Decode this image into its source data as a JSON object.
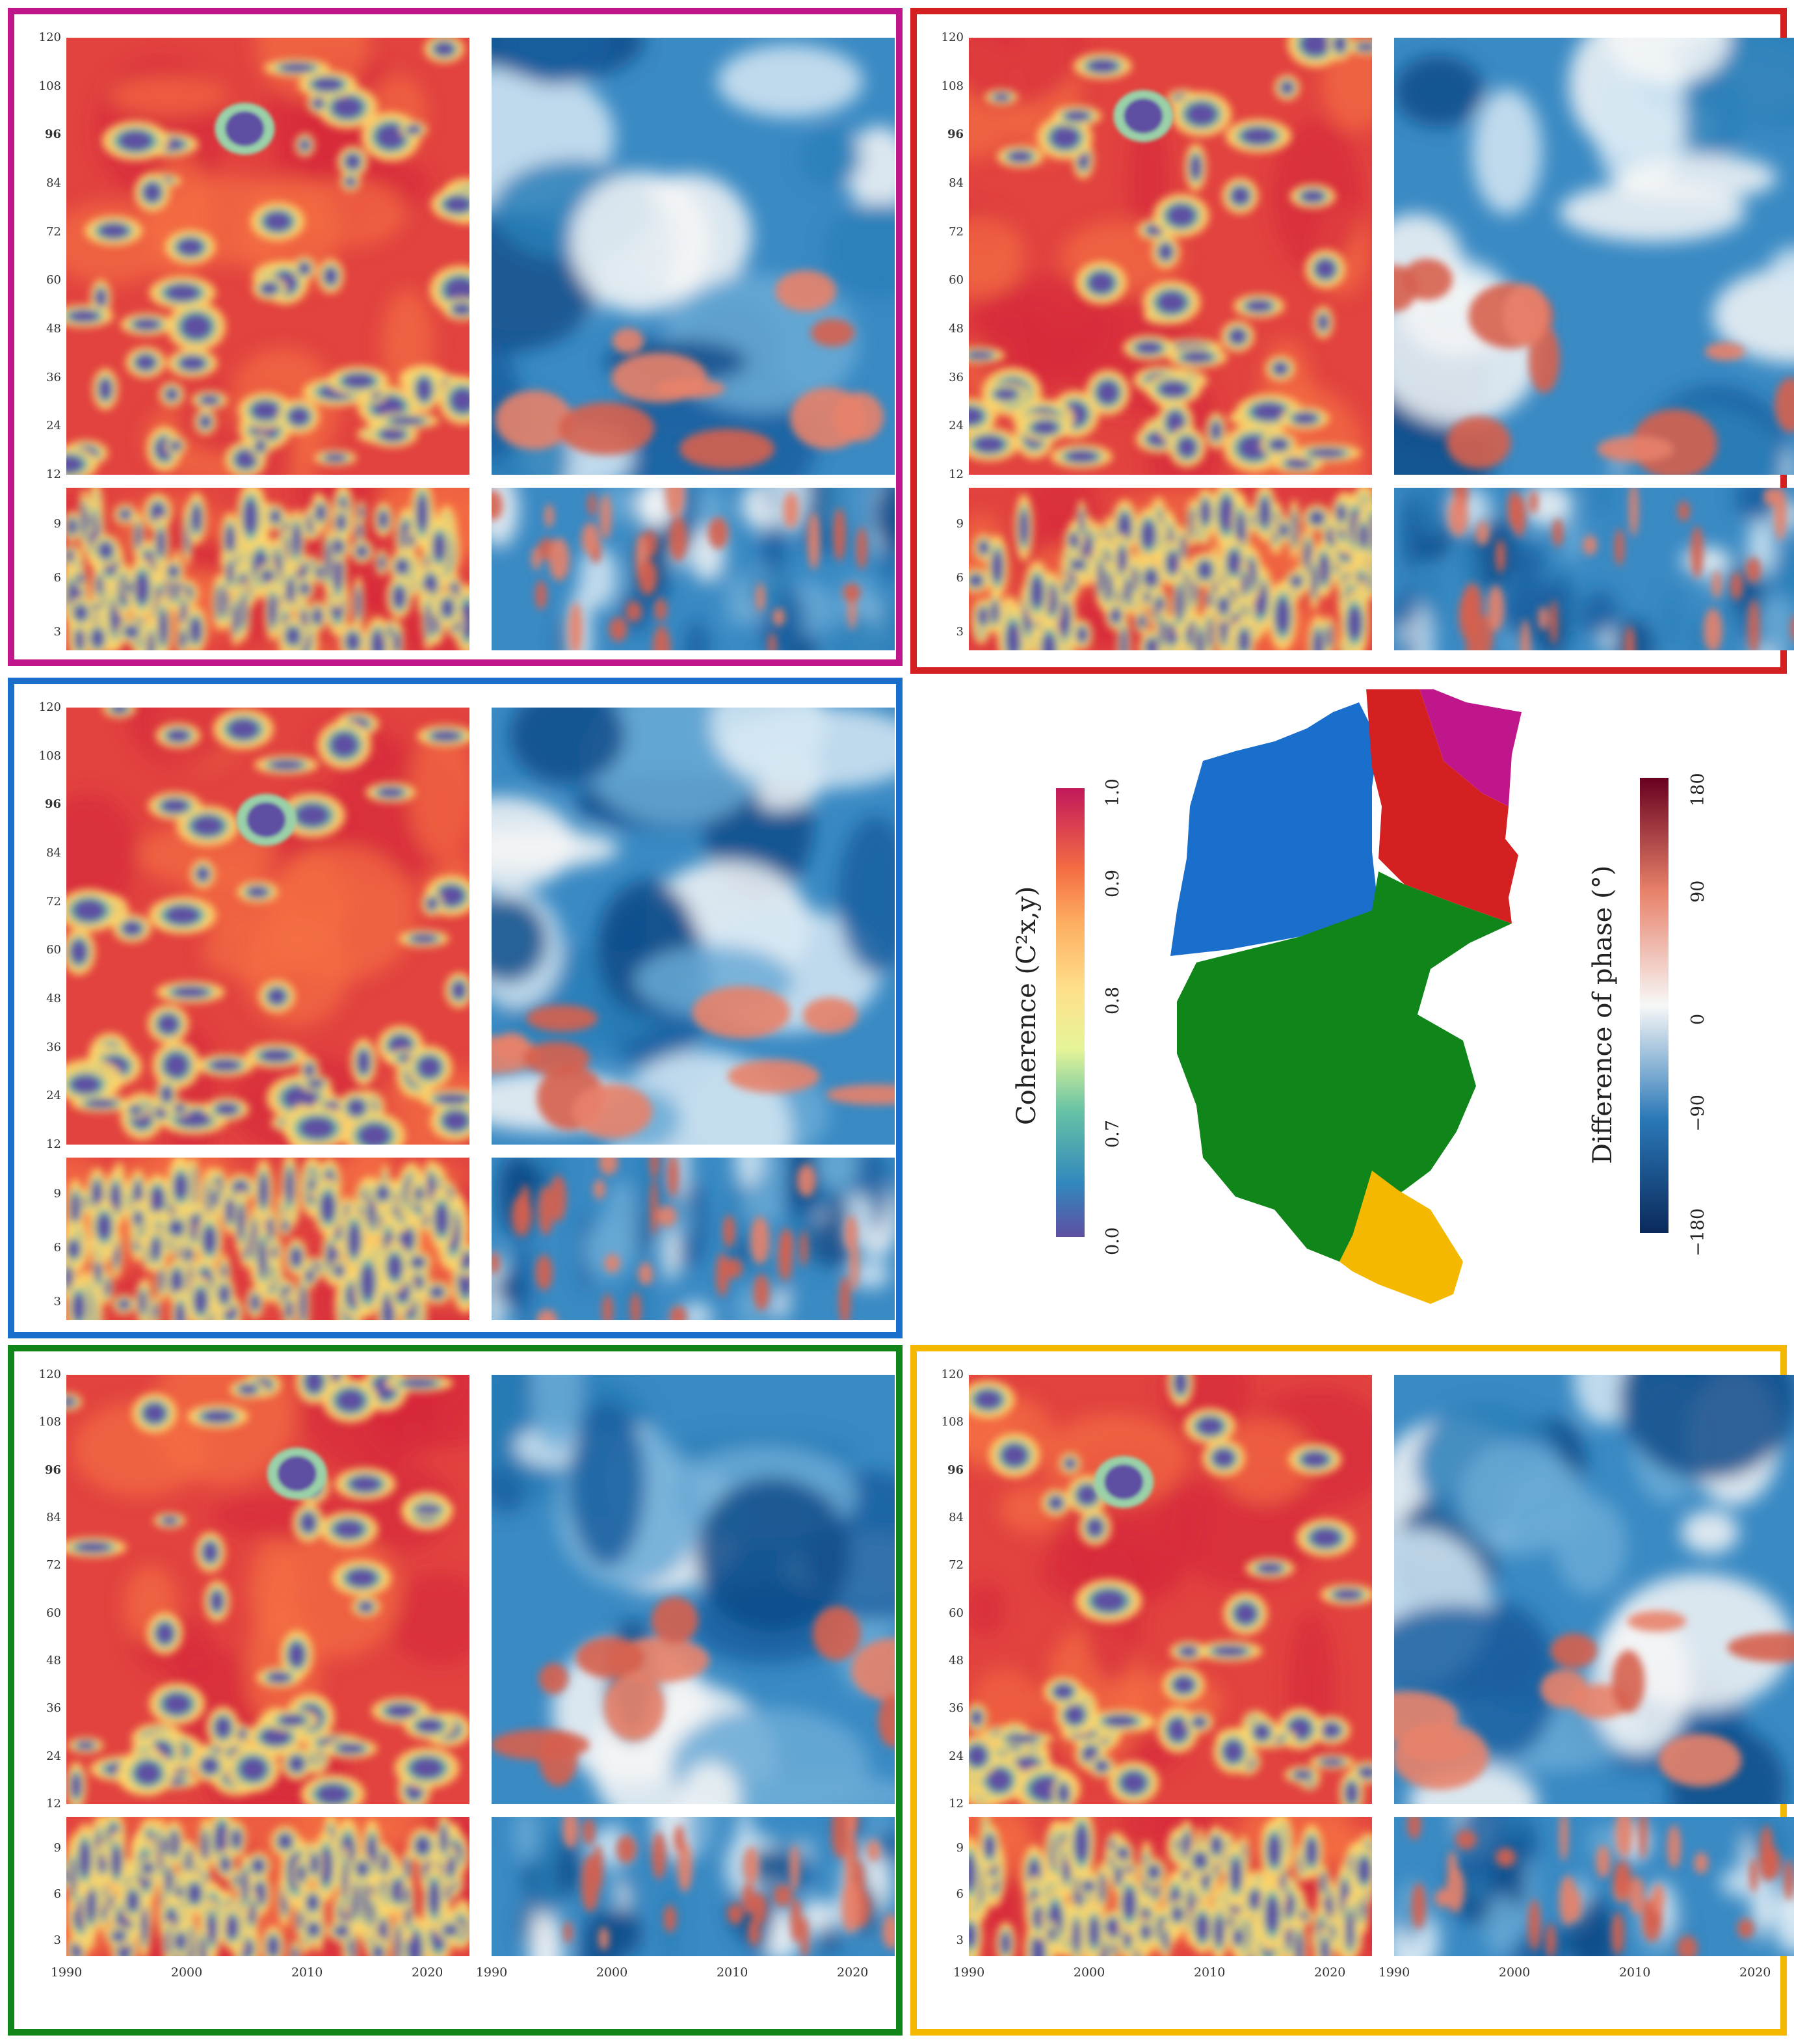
{
  "chart_data": {
    "type": "heatmap",
    "figures": "wavelet coherence and phase difference by region",
    "x_ticks": [
      1990,
      2000,
      2010,
      2020
    ],
    "y_ticks_upper": [
      12,
      24,
      36,
      48,
      60,
      72,
      84,
      96,
      108,
      120
    ],
    "y_ticks_lower": [
      3,
      6,
      9
    ],
    "y_bold_tick": 96,
    "coherence_colorbar": {
      "label": "Coherence (C²x,y)",
      "ticks": [
        "0.0",
        "0.7",
        "0.8",
        "0.9",
        "1.0"
      ],
      "colors": [
        "#5e4fa2",
        "#3288bd",
        "#66c2a5",
        "#abdda4",
        "#e6f598",
        "#fee08b",
        "#fdae61",
        "#f46d43",
        "#d53e4f",
        "#c2185b"
      ]
    },
    "phase_colorbar": {
      "label": "Difference of phase (°)",
      "ticks": [
        "−180",
        "−90",
        "0",
        "90",
        "180"
      ],
      "colors": [
        "#0b2a5b",
        "#1f6bb0",
        "#8dbfe0",
        "#f7f7f7",
        "#f4a582",
        "#d6604d",
        "#67001f"
      ]
    },
    "regions": [
      {
        "id": "magenta",
        "color": "#c0168c"
      },
      {
        "id": "red",
        "color": "#d42020"
      },
      {
        "id": "blue",
        "color": "#1a6fcd"
      },
      {
        "id": "green",
        "color": "#10861a"
      },
      {
        "id": "yellow",
        "color": "#f5b800"
      }
    ]
  }
}
